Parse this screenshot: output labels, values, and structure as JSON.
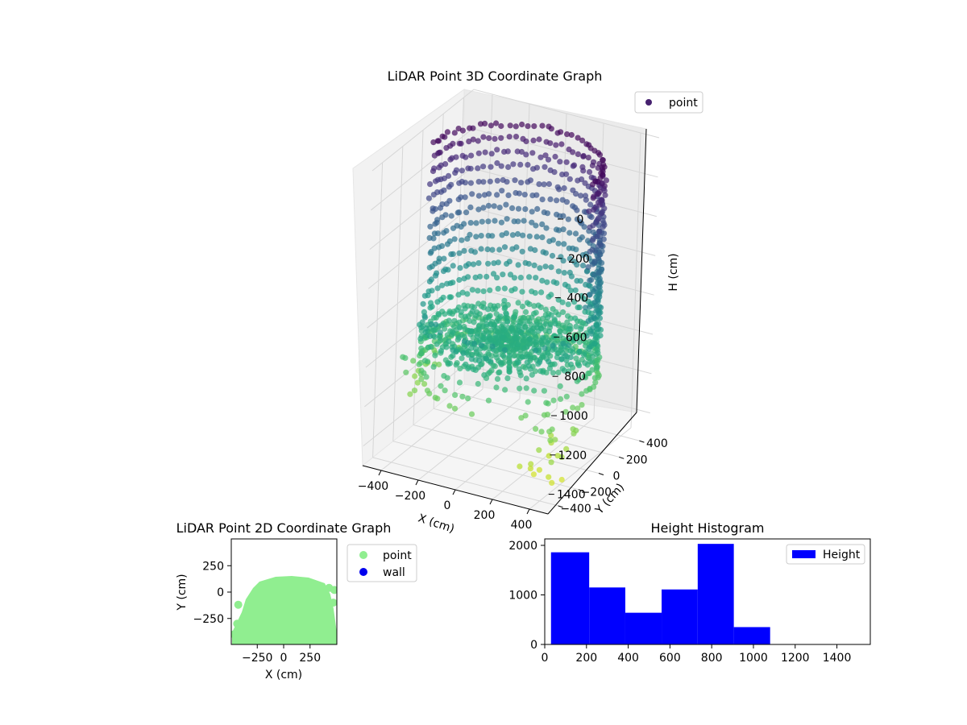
{
  "chart_data": [
    {
      "type": "scatter",
      "title": "LiDAR Point 3D Coordinate Graph",
      "xlabel": "X (cm)",
      "ylabel": "Y (cm)",
      "zlabel": "H (cm)",
      "xticks": [
        "−400",
        "−200",
        "0",
        "200",
        "400"
      ],
      "yticks": [
        "−400",
        "−200",
        "0",
        "200",
        "400"
      ],
      "zticks": [
        "0",
        "200",
        "400",
        "600",
        "800",
        "1000",
        "1200",
        "1400"
      ],
      "zlim": [
        0,
        1500
      ],
      "z_inverted": true,
      "colormap": "viridis",
      "legend": {
        "position": "top-right",
        "entries": [
          {
            "name": "point",
            "color": "#46216f"
          }
        ]
      }
    },
    {
      "type": "scatter",
      "title": "LiDAR Point 2D Coordinate Graph",
      "xlabel": "X (cm)",
      "ylabel": "Y (cm)",
      "xticks": [
        "−250",
        "0",
        "250"
      ],
      "yticks": [
        "250",
        "0",
        "−250"
      ],
      "xlim": [
        -500,
        500
      ],
      "ylim": [
        -500,
        500
      ],
      "legend": {
        "position": "outside-right",
        "entries": [
          {
            "name": "point",
            "color": "#90ee90"
          },
          {
            "name": "wall",
            "color": "#0000ee"
          }
        ]
      }
    },
    {
      "type": "bar",
      "title": "Height Histogram",
      "series": [
        {
          "name": "Height",
          "color": "#0000ff"
        }
      ],
      "bins": [
        {
          "start": 30,
          "end": 213,
          "value": 1860
        },
        {
          "start": 213,
          "end": 386,
          "value": 1150
        },
        {
          "start": 386,
          "end": 560,
          "value": 640
        },
        {
          "start": 560,
          "end": 733,
          "value": 1110
        },
        {
          "start": 733,
          "end": 906,
          "value": 2030
        },
        {
          "start": 906,
          "end": 1080,
          "value": 350
        },
        {
          "start": 1080,
          "end": 1253,
          "value": 8
        },
        {
          "start": 1253,
          "end": 1426,
          "value": 5
        },
        {
          "start": 1426,
          "end": 1560,
          "value": 5
        }
      ],
      "xlim": [
        0,
        1560
      ],
      "ylim": [
        0,
        2130
      ],
      "xticks": [
        "0",
        "200",
        "400",
        "600",
        "800",
        "1000",
        "1200",
        "1400"
      ],
      "yticks": [
        "0",
        "1000",
        "2000"
      ],
      "legend": {
        "position": "top-right",
        "entries": [
          {
            "name": "Height",
            "color": "#0000ff"
          }
        ]
      }
    }
  ]
}
